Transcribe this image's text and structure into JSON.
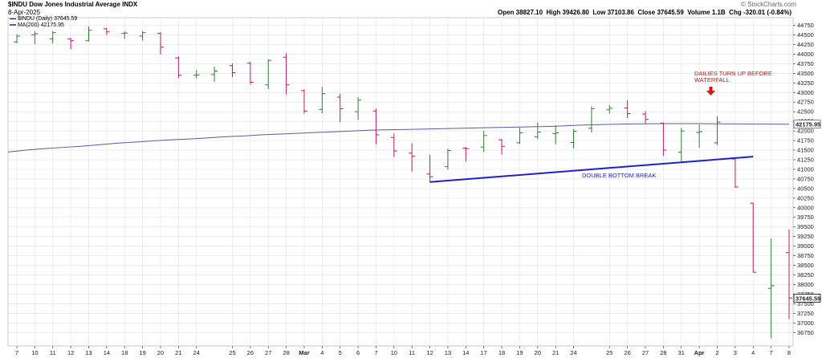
{
  "header": {
    "symbol_title": "$INDU Dow Jones Industrial Average  INDX",
    "date": "8-Apr-2025",
    "quote_prefix": "Open",
    "open": "38827.10",
    "high_label": "High",
    "high": "39426.80",
    "low_label": "Low",
    "low": "37103.86",
    "close_label": "Close",
    "close": "37645.59",
    "volume_label": "Volume",
    "volume": "1.1B",
    "chg_label": "Chg",
    "chg": "-320.01 (-0.84%)"
  },
  "legend": {
    "price_series": "$INDU (Daily) 37645.59",
    "ma_series": "MA(200) 42175.95"
  },
  "watermark": "© StockCharts.com",
  "colors": {
    "up": "#2e7d32",
    "down": "#c2185b",
    "ma": "#5a5aa8",
    "trendline": "#1f1fd1",
    "annotation": "#e01010",
    "grid": "#e4e4e4"
  },
  "chart_data": {
    "type": "ohlc",
    "title": "$INDU Dow Jones Industrial Average",
    "y_ticks": [
      36750,
      37000,
      37250,
      37500,
      37750,
      38000,
      38250,
      38500,
      38750,
      39000,
      39250,
      39500,
      39750,
      40000,
      40250,
      40500,
      40750,
      41000,
      41250,
      41500,
      41750,
      42000,
      42250,
      42500,
      42750,
      43000,
      43250,
      43500,
      43750,
      44000,
      44250,
      44500,
      44750
    ],
    "ylim": [
      36400,
      44950
    ],
    "grid": true,
    "current_price_label": "37645.59",
    "ma_price_label": "42175.95",
    "x_tick_labels": [
      "7",
      "10",
      "11",
      "12",
      "13",
      "14",
      "18",
      "19",
      "20",
      "21",
      "24",
      "25",
      "26",
      "27",
      "28",
      "Mar",
      "4",
      "5",
      "6",
      "7",
      "10",
      "11",
      "12",
      "13",
      "14",
      "17",
      "18",
      "19",
      "20",
      "21",
      "24",
      "25",
      "26",
      "27",
      "28",
      "31",
      "Apr",
      "2",
      "3",
      "4",
      "7",
      "8"
    ],
    "bars": [
      {
        "o": 44320,
        "h": 44520,
        "l": 44280,
        "c": 44470
      },
      {
        "o": 44500,
        "h": 44600,
        "l": 44260,
        "c": 44530
      },
      {
        "o": 44400,
        "h": 44600,
        "l": 44280,
        "c": 44560
      },
      {
        "o": 44400,
        "h": 44420,
        "l": 44130,
        "c": 44350
      },
      {
        "o": 44350,
        "h": 44720,
        "l": 44330,
        "c": 44620
      },
      {
        "o": 44660,
        "h": 44680,
        "l": 44500,
        "c": 44580
      },
      {
        "o": 44540,
        "h": 44590,
        "l": 44400,
        "c": 44550
      },
      {
        "o": 44470,
        "h": 44600,
        "l": 44350,
        "c": 44560
      },
      {
        "o": 44540,
        "h": 44570,
        "l": 43990,
        "c": 44180
      },
      {
        "o": 43900,
        "h": 43940,
        "l": 43380,
        "c": 43450
      },
      {
        "o": 43450,
        "h": 43580,
        "l": 43370,
        "c": 43460
      },
      {
        "o": 43470,
        "h": 43670,
        "l": 43280,
        "c": 43560
      },
      {
        "o": 43700,
        "h": 43760,
        "l": 43400,
        "c": 43520
      },
      {
        "o": 43760,
        "h": 43800,
        "l": 43210,
        "c": 43270
      },
      {
        "o": 43200,
        "h": 43870,
        "l": 43090,
        "c": 43840
      },
      {
        "o": 43920,
        "h": 44020,
        "l": 42950,
        "c": 43200
      },
      {
        "o": 43050,
        "h": 43080,
        "l": 42450,
        "c": 42520
      },
      {
        "o": 42560,
        "h": 43150,
        "l": 42450,
        "c": 42970
      },
      {
        "o": 42880,
        "h": 42970,
        "l": 42230,
        "c": 42580
      },
      {
        "o": 42500,
        "h": 42880,
        "l": 42290,
        "c": 42800
      },
      {
        "o": 42520,
        "h": 42580,
        "l": 41650,
        "c": 41900
      },
      {
        "o": 41830,
        "h": 41930,
        "l": 41320,
        "c": 41480
      },
      {
        "o": 41420,
        "h": 41680,
        "l": 40940,
        "c": 41340
      },
      {
        "o": 40880,
        "h": 41380,
        "l": 40660,
        "c": 40810
      },
      {
        "o": 41070,
        "h": 41530,
        "l": 40990,
        "c": 41490
      },
      {
        "o": 41550,
        "h": 41580,
        "l": 41200,
        "c": 41540
      },
      {
        "o": 41580,
        "h": 42000,
        "l": 41450,
        "c": 41880
      },
      {
        "o": 41770,
        "h": 41790,
        "l": 41380,
        "c": 41600
      },
      {
        "o": 41690,
        "h": 42090,
        "l": 41660,
        "c": 41950
      },
      {
        "o": 41850,
        "h": 42220,
        "l": 41790,
        "c": 41970
      },
      {
        "o": 41930,
        "h": 42150,
        "l": 41650,
        "c": 41950
      },
      {
        "o": 41700,
        "h": 42040,
        "l": 41550,
        "c": 41990
      },
      {
        "o": 42070,
        "h": 42640,
        "l": 41960,
        "c": 42580
      },
      {
        "o": 42550,
        "h": 42670,
        "l": 42450,
        "c": 42590
      },
      {
        "o": 42600,
        "h": 42800,
        "l": 42330,
        "c": 42450
      },
      {
        "o": 42440,
        "h": 42520,
        "l": 42200,
        "c": 42300
      },
      {
        "o": 42200,
        "h": 42220,
        "l": 41350,
        "c": 41500
      },
      {
        "o": 41450,
        "h": 42080,
        "l": 41170,
        "c": 42000
      },
      {
        "o": 41960,
        "h": 42160,
        "l": 41560,
        "c": 41980
      },
      {
        "o": 41690,
        "h": 42380,
        "l": 41630,
        "c": 42230
      },
      {
        "o": 41270,
        "h": 41310,
        "l": 40520,
        "c": 40540
      },
      {
        "o": 40120,
        "h": 40130,
        "l": 38310,
        "c": 38320
      },
      {
        "o": 37900,
        "h": 39200,
        "l": 36600,
        "c": 37970
      },
      {
        "o": 38830,
        "h": 39430,
        "l": 37100,
        "c": 37650
      }
    ],
    "ma200": [
      41450,
      41500,
      41540,
      41570,
      41600,
      41640,
      41680,
      41710,
      41740,
      41770,
      41790,
      41820,
      41850,
      41870,
      41900,
      41920,
      41940,
      41960,
      41980,
      42000,
      42020,
      42030,
      42040,
      42050,
      42060,
      42070,
      42080,
      42090,
      42100,
      42110,
      42120,
      42140,
      42160,
      42170,
      42180,
      42185,
      42190,
      42190,
      42190,
      42185,
      42182,
      42180,
      42178,
      42176
    ],
    "annotations": [
      {
        "text": "DAILIES TURN UP BEFORE",
        "line2": "WATERFALL",
        "color": "red"
      },
      {
        "text": "DOUBLE BOTTOM BREAK",
        "color": "blue"
      }
    ],
    "trendline": {
      "from_index": 23,
      "from_value": 40670,
      "to_index": 41,
      "to_value": 41330
    }
  }
}
